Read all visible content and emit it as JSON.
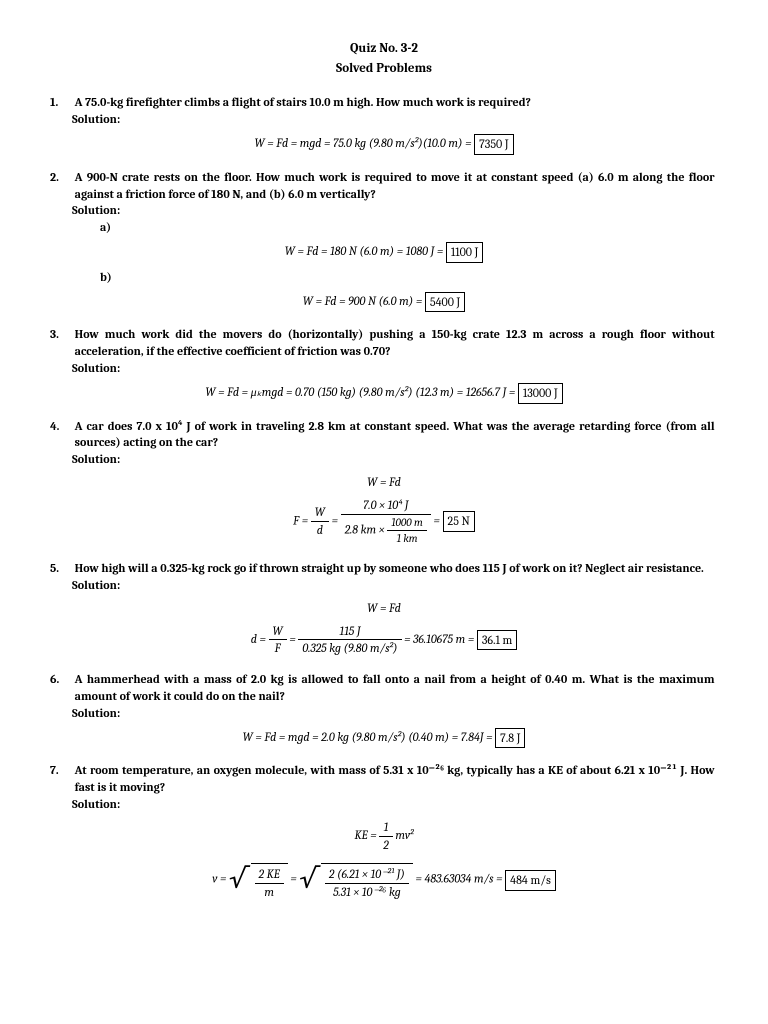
{
  "header": {
    "title": "Quiz No. 3-2",
    "subtitle": "Solved Problems"
  },
  "problems": [
    {
      "n": "1.",
      "q": "A 75.0-kg firefighter climbs a flight of stairs 10.0 m high. How much work is required?",
      "sol": "Solution:",
      "eq1_lhs": "W = Fd = mgd = 75.0 kg (9.80 m/s²)(10.0 m) =",
      "eq1_box": "7350 J"
    },
    {
      "n": "2.",
      "q": "A 900-N crate rests on the floor. How much work is required to move it at constant speed (a) 6.0 m along the floor against a friction force of 180 N, and (b) 6.0 m vertically?",
      "sol": "Solution:",
      "a": "a)",
      "eq_a_lhs": "W = Fd = 180 N (6.0 m) = 1080 J =",
      "eq_a_box": "1100 J",
      "b": "b)",
      "eq_b_lhs": "W = Fd = 900 N (6.0 m) =",
      "eq_b_box": "5400 J"
    },
    {
      "n": "3.",
      "q": "How much work did the movers do (horizontally) pushing a 150-kg crate 12.3 m across a rough floor without acceleration, if the effective coefficient of friction was 0.70?",
      "sol": "Solution:",
      "eq_lhs": "W = Fd = μₖmgd = 0.70 (150 kg) (9.80 m/s²) (12.3 m) = 12656.7 J =",
      "eq_box": "13000 J"
    },
    {
      "n": "4.",
      "q": "A car does 7.0 x 10⁴ J of work in traveling 2.8 km at constant speed. What was the average retarding force (from all sources) acting on the car?",
      "sol": "Solution:",
      "eq1": "W = Fd",
      "f_lhs": "F =",
      "f_frac1_top": "W",
      "f_frac1_bot": "d",
      "f_eq": "=",
      "f_frac2_top": "7.0 × 10⁴ J",
      "f_frac2_bot_a": "2.8 km ×",
      "f_inner_top": "1000 m",
      "f_inner_bot": "1 km",
      "f_eq2": "=",
      "f_box": "25 N"
    },
    {
      "n": "5.",
      "q": "How high will a 0.325-kg rock go if thrown straight up by someone who does 115 J of work on it? Neglect air resistance.",
      "sol": "Solution:",
      "eq1": "W = Fd",
      "d_lhs": "d =",
      "d_frac1_top": "W",
      "d_frac1_bot": "F",
      "d_eq": "=",
      "d_frac2_top": "115 J",
      "d_frac2_bot": "0.325 kg (9.80 m/s²)",
      "d_mid": "= 36.10675 m =",
      "d_box": "36.1 m"
    },
    {
      "n": "6.",
      "q": "A hammerhead with a mass of 2.0 kg is allowed to fall onto a nail from a height of 0.40 m. What is the maximum amount of work it could do on the nail?",
      "sol": "Solution:",
      "eq_lhs": "W = Fd = mgd = 2.0 kg (9.80 m/s²) (0.40 m) = 7.84J =",
      "eq_box": "7.8 J"
    },
    {
      "n": "7.",
      "q": "At room temperature, an oxygen molecule, with mass of 5.31 x 10⁻²⁶ kg, typically has a KE of about 6.21 x 10⁻²¹ J. How fast is it moving?",
      "sol": "Solution:",
      "ke_lhs": "KE =",
      "ke_top": "1",
      "ke_bot": "2",
      "ke_rhs": "mv²",
      "v_lhs": "v =",
      "v_s1_top": "2 KE",
      "v_s1_bot": "m",
      "v_eq": "=",
      "v_s2_top": "2 (6.21 × 10⁻²¹ J)",
      "v_s2_bot": "5.31 × 10⁻²⁶ kg",
      "v_mid": "= 483.63034 m/s =",
      "v_box": "484 m/s"
    }
  ]
}
